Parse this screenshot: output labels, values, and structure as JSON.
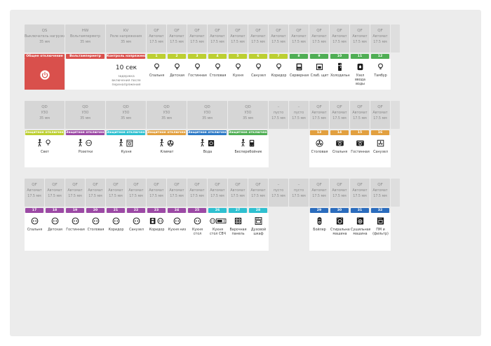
{
  "colors": {
    "red": "#d9504c",
    "lime": "#bccf31",
    "green": "#4fae54",
    "purple": "#9c4aa5",
    "cyan": "#2fc0d0",
    "orange": "#e2a03f",
    "blueband": "#2e7ac6",
    "blue": "#2b6cbd",
    "header_cell": "#d6d6d6",
    "board_bg": "#ececec"
  },
  "rows": [
    {
      "name": "din-row-1",
      "cells": [
        {
          "device": "QS",
          "kind": "Выключатель нагрузки",
          "size": "35 мм",
          "wide": true,
          "band_text": "Общее отключение",
          "band_color": "red",
          "flush": true,
          "body": "power"
        },
        {
          "device": "HW",
          "kind": "Вольтамперметр",
          "size": "35 мм",
          "wide": true,
          "band_text": "Вольтамперметр",
          "band_color": "red"
        },
        {
          "device": "KV",
          "kind": "Реле напряжения",
          "size": "35 мм",
          "wide": true,
          "band_text": "Контроль напряжения",
          "band_color": "red",
          "note_big": "10 сек",
          "note_small": "задержка включения после перенапряжения"
        },
        {
          "device": "QF",
          "kind": "Автомат",
          "size": "17.5 мм",
          "band_text": "1",
          "band_color": "lime",
          "icon": "lamp",
          "label": "Спальня"
        },
        {
          "device": "QF",
          "kind": "Автомат",
          "size": "17.5 мм",
          "band_text": "2",
          "band_color": "lime",
          "icon": "lamp",
          "label": "Детская"
        },
        {
          "device": "QF",
          "kind": "Автомат",
          "size": "17.5 мм",
          "band_text": "3",
          "band_color": "lime",
          "icon": "lamp",
          "label": "Гостинная"
        },
        {
          "device": "QF",
          "kind": "Автомат",
          "size": "17.5 мм",
          "band_text": "4",
          "band_color": "lime",
          "icon": "lamp",
          "label": "Столовая"
        },
        {
          "device": "QF",
          "kind": "Автомат",
          "size": "17.5 мм",
          "band_text": "5",
          "band_color": "lime",
          "icon": "lamp",
          "label": "Кухня"
        },
        {
          "device": "QF",
          "kind": "Автомат",
          "size": "17.5 мм",
          "band_text": "6",
          "band_color": "lime",
          "icon": "lamp",
          "label": "Санузел"
        },
        {
          "device": "QF",
          "kind": "Автомат",
          "size": "17.5 мм",
          "band_text": "7",
          "band_color": "lime",
          "icon": "lamp",
          "label": "Коридор"
        },
        {
          "device": "QF",
          "kind": "Автомат",
          "size": "17.5 мм",
          "band_text": "8",
          "band_color": "green",
          "icon": "server",
          "label": "Серверная"
        },
        {
          "device": "QF",
          "kind": "Автомат",
          "size": "17.5 мм",
          "band_text": "9",
          "band_color": "green",
          "icon": "panel",
          "label": "Слаб. щит"
        },
        {
          "device": "QF",
          "kind": "Автомат",
          "size": "17.5 мм",
          "band_text": "10",
          "band_color": "green",
          "icon": "fridge",
          "label": "Холодильник"
        },
        {
          "device": "QF",
          "kind": "Автомат",
          "size": "17.5 мм",
          "band_text": "11",
          "band_color": "green",
          "icon": "water",
          "label": "Узел ввода воды"
        },
        {
          "device": "QF",
          "kind": "Автомат",
          "size": "17.5 мм",
          "band_text": "12",
          "band_color": "green",
          "icon": "lamp",
          "label": "Тамбур"
        }
      ]
    },
    {
      "name": "din-row-2",
      "cells": [
        {
          "device": "QD",
          "kind": "УЗО",
          "size": "35 мм",
          "wide": true,
          "band_text": "Защитное отключение",
          "band_color": "lime",
          "icon": "person-lamp",
          "label": "Свет"
        },
        {
          "device": "QD",
          "kind": "УЗО",
          "size": "35 мм",
          "wide": true,
          "band_text": "Защитное отключение",
          "band_color": "purple",
          "icon": "person-socket",
          "label": "Розетки"
        },
        {
          "device": "QD",
          "kind": "УЗО",
          "size": "35 мм",
          "wide": true,
          "band_text": "Защитное отключение",
          "band_color": "cyan",
          "icon": "person-kitchen",
          "label": "Кухня"
        },
        {
          "device": "QD",
          "kind": "УЗО",
          "size": "35 мм",
          "wide": true,
          "band_text": "Защитное отключение",
          "band_color": "orange",
          "icon": "person-fan",
          "label": "Климат"
        },
        {
          "device": "QD",
          "kind": "УЗО",
          "size": "35 мм",
          "wide": true,
          "band_text": "Защитное отключение",
          "band_color": "blueband",
          "icon": "person-washer",
          "label": "Вода"
        },
        {
          "device": "QD",
          "kind": "УЗО",
          "size": "35 мм",
          "wide": true,
          "band_text": "Защитное отключение",
          "band_color": "green",
          "icon": "person-ups",
          "label": "Бесперебойник"
        },
        {
          "device": "–",
          "kind": "пусто",
          "size": "17.5 мм",
          "empty": true
        },
        {
          "device": "–",
          "kind": "пусто",
          "size": "17.5 мм",
          "empty": true
        },
        {
          "device": "QF",
          "kind": "Автомат",
          "size": "17.5 мм",
          "band_text": "13",
          "band_color": "orange",
          "icon": "fan",
          "label": "Столовая"
        },
        {
          "device": "QF",
          "kind": "Автомат",
          "size": "17.5 мм",
          "band_text": "14",
          "band_color": "orange",
          "icon": "ac",
          "label": "Спальня"
        },
        {
          "device": "QF",
          "kind": "Автомат",
          "size": "17.5 мм",
          "band_text": "15",
          "band_color": "orange",
          "icon": "ac",
          "label": "Гостинная"
        },
        {
          "device": "QF",
          "kind": "Автомат",
          "size": "17.5 мм",
          "band_text": "16",
          "band_color": "orange",
          "icon": "ac2",
          "label": "Санузел"
        }
      ]
    },
    {
      "name": "din-row-3",
      "cells": [
        {
          "device": "QF",
          "kind": "Автомат",
          "size": "17.5 мм",
          "band_text": "17",
          "band_color": "purple",
          "icon": "socket",
          "label": "Спальня"
        },
        {
          "device": "QF",
          "kind": "Автомат",
          "size": "17.5 мм",
          "band_text": "18",
          "band_color": "purple",
          "icon": "socket",
          "label": "Детская"
        },
        {
          "device": "QF",
          "kind": "Автомат",
          "size": "17.5 мм",
          "band_text": "19",
          "band_color": "purple",
          "icon": "socket",
          "label": "Гостинная"
        },
        {
          "device": "QF",
          "kind": "Автомат",
          "size": "17.5 мм",
          "band_text": "20",
          "band_color": "purple",
          "icon": "socket",
          "label": "Столовая"
        },
        {
          "device": "QF",
          "kind": "Автомат",
          "size": "17.5 мм",
          "band_text": "21",
          "band_color": "purple",
          "icon": "socket",
          "label": "Коридор"
        },
        {
          "device": "QF",
          "kind": "Автомат",
          "size": "17.5 мм",
          "band_text": "22",
          "band_color": "purple",
          "icon": "socket",
          "label": "Санузел"
        },
        {
          "device": "QF",
          "kind": "Автомат",
          "size": "17.5 мм",
          "band_text": "23",
          "band_color": "purple",
          "icon": "phone-socket",
          "label": "Коридор"
        },
        {
          "device": "QF",
          "kind": "Автомат",
          "size": "17.5 мм",
          "band_text": "24",
          "band_color": "purple",
          "icon": "socket",
          "label": "Кухня низ"
        },
        {
          "device": "QF",
          "kind": "Автомат",
          "size": "17.5 мм",
          "band_text": "25",
          "band_color": "purple",
          "icon": "socket",
          "label": "Кухня стол"
        },
        {
          "device": "QF",
          "kind": "Автомат",
          "size": "17.5 мм",
          "band_text": "26",
          "band_color": "cyan",
          "icon": "socket-microwave",
          "label": "Кухня стол СВЧ"
        },
        {
          "device": "QF",
          "kind": "Автомат",
          "size": "17.5 мм",
          "band_text": "27",
          "band_color": "cyan",
          "icon": "cooktop",
          "label": "Варочная панель"
        },
        {
          "device": "QF",
          "kind": "Автомат",
          "size": "17.5 мм",
          "band_text": "28",
          "band_color": "cyan",
          "icon": "oven",
          "label": "Духовой шкаф"
        },
        {
          "device": "–",
          "kind": "пусто",
          "size": "17.5 мм",
          "empty": true
        },
        {
          "device": "–",
          "kind": "пусто",
          "size": "17.5 мм",
          "empty": true
        },
        {
          "device": "QF",
          "kind": "Автомат",
          "size": "17.5 мм",
          "band_text": "29",
          "band_color": "blue",
          "icon": "boiler",
          "label": "Бойлер"
        },
        {
          "device": "QF",
          "kind": "Автомат",
          "size": "17.5 мм",
          "band_text": "30",
          "band_color": "blue",
          "icon": "washer",
          "label": "Стиральная машина"
        },
        {
          "device": "QF",
          "kind": "Автомат",
          "size": "17.5 мм",
          "band_text": "31",
          "band_color": "blue",
          "icon": "dryer",
          "label": "Сушильная машина"
        },
        {
          "device": "QF",
          "kind": "Автомат",
          "size": "17.5 мм",
          "band_text": "32",
          "band_color": "blue",
          "icon": "dishwasher",
          "label": "ПМ и (фильтр)"
        }
      ]
    }
  ]
}
